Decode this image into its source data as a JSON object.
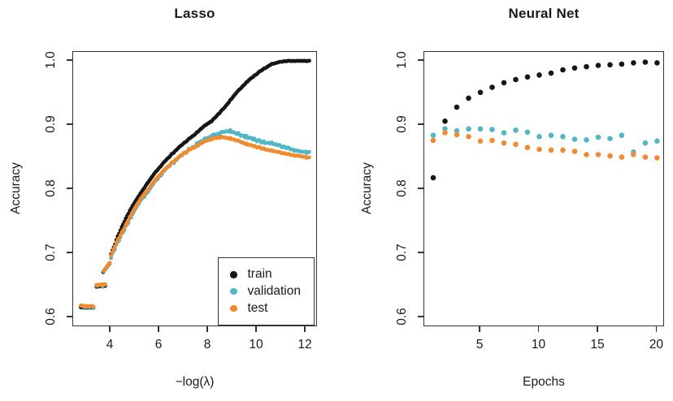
{
  "page": {
    "background": "#ffffff"
  },
  "colors": {
    "train": "#161616",
    "validation": "#52b7c4",
    "test": "#f18b2f",
    "axis": "#333333"
  },
  "chart_data": [
    {
      "type": "scatter",
      "panel": "lasso",
      "title": "Lasso",
      "xlabel": "−log(λ)",
      "ylabel": "Accuracy",
      "xlim": [
        2.467,
        12.5
      ],
      "ylim": [
        0.585,
        1.014
      ],
      "grid": false,
      "xticks": [
        {
          "value": 4,
          "label": "4"
        },
        {
          "value": 6,
          "label": "6"
        },
        {
          "value": 8,
          "label": "8"
        },
        {
          "value": 10,
          "label": "10"
        },
        {
          "value": 12,
          "label": "12"
        }
      ],
      "yticks": [
        {
          "value": 0.6,
          "label": "0.6"
        },
        {
          "value": 0.7,
          "label": "0.7"
        },
        {
          "value": 0.8,
          "label": "0.8"
        },
        {
          "value": 0.9,
          "label": "0.9"
        },
        {
          "value": 1.0,
          "label": "1.0"
        }
      ],
      "legend": {
        "position": "bottom-right",
        "items": [
          {
            "series": "train",
            "label": "train"
          },
          {
            "series": "validation",
            "label": "validation"
          },
          {
            "series": "test",
            "label": "test"
          }
        ]
      },
      "point_radius": 2.4,
      "sample_step_x": 0.055,
      "series": [
        {
          "name": "train",
          "jitter": 0.0006,
          "segments": [
            [
              [
                2.78,
                0.6155
              ],
              [
                3.3,
                0.6155
              ]
            ],
            [
              [
                3.42,
                0.648
              ],
              [
                3.78,
                0.649
              ]
            ],
            [
              [
                3.7,
                0.671
              ],
              [
                3.95,
                0.6835
              ]
            ],
            [
              [
                4.02,
                0.699
              ],
              [
                4.16,
                0.712
              ],
              [
                4.3,
                0.727
              ],
              [
                4.5,
                0.744
              ],
              [
                4.7,
                0.76
              ],
              [
                4.9,
                0.774
              ],
              [
                5.17,
                0.79
              ],
              [
                5.5,
                0.809
              ],
              [
                5.83,
                0.826
              ],
              [
                6.17,
                0.841
              ],
              [
                6.5,
                0.854
              ],
              [
                6.83,
                0.866
              ],
              [
                7.17,
                0.877
              ],
              [
                7.5,
                0.887
              ],
              [
                7.83,
                0.898
              ],
              [
                8.17,
                0.907
              ],
              [
                8.67,
                0.927
              ],
              [
                9.17,
                0.951
              ],
              [
                9.67,
                0.97
              ],
              [
                10.17,
                0.985
              ],
              [
                10.6,
                0.995
              ],
              [
                11.0,
                0.999
              ],
              [
                11.3,
                1.0
              ],
              [
                12.15,
                1.0
              ]
            ]
          ]
        },
        {
          "name": "validation",
          "jitter": 0.002,
          "segments": [
            [
              [
                2.78,
                0.617
              ],
              [
                3.3,
                0.617
              ]
            ],
            [
              [
                3.42,
                0.6495
              ],
              [
                3.78,
                0.6505
              ]
            ],
            [
              [
                3.72,
                0.672
              ],
              [
                3.95,
                0.6845
              ]
            ],
            [
              [
                4.02,
                0.694
              ],
              [
                4.2,
                0.71
              ],
              [
                4.4,
                0.725
              ],
              [
                4.6,
                0.739
              ],
              [
                4.8,
                0.754
              ],
              [
                5.0,
                0.768
              ],
              [
                5.25,
                0.783
              ],
              [
                5.5,
                0.795
              ],
              [
                5.8,
                0.811
              ],
              [
                6.1,
                0.824
              ],
              [
                6.4,
                0.836
              ],
              [
                6.7,
                0.846
              ],
              [
                7.0,
                0.856
              ],
              [
                7.3,
                0.864
              ],
              [
                7.6,
                0.872
              ],
              [
                7.9,
                0.878
              ],
              [
                8.2,
                0.884
              ],
              [
                8.5,
                0.887
              ],
              [
                8.8,
                0.891
              ],
              [
                9.05,
                0.889
              ],
              [
                9.3,
                0.885
              ],
              [
                9.7,
                0.88
              ],
              [
                10.2,
                0.874
              ],
              [
                10.7,
                0.871
              ],
              [
                11.2,
                0.865
              ],
              [
                11.7,
                0.859
              ],
              [
                12.15,
                0.857
              ]
            ]
          ]
        },
        {
          "name": "test",
          "jitter": 0.001,
          "segments": [
            [
              [
                2.78,
                0.618
              ],
              [
                3.3,
                0.618
              ]
            ],
            [
              [
                3.42,
                0.6505
              ],
              [
                3.78,
                0.6515
              ]
            ],
            [
              [
                3.74,
                0.6735
              ],
              [
                3.97,
                0.686
              ]
            ],
            [
              [
                4.02,
                0.697
              ],
              [
                4.2,
                0.713
              ],
              [
                4.4,
                0.728
              ],
              [
                4.6,
                0.742
              ],
              [
                4.8,
                0.757
              ],
              [
                5.0,
                0.771
              ],
              [
                5.25,
                0.786
              ],
              [
                5.5,
                0.798
              ],
              [
                5.8,
                0.813
              ],
              [
                6.1,
                0.826
              ],
              [
                6.4,
                0.837
              ],
              [
                6.7,
                0.847
              ],
              [
                7.0,
                0.856
              ],
              [
                7.3,
                0.863
              ],
              [
                7.6,
                0.869
              ],
              [
                7.9,
                0.875
              ],
              [
                8.2,
                0.879
              ],
              [
                8.5,
                0.881
              ],
              [
                8.8,
                0.88
              ],
              [
                9.2,
                0.876
              ],
              [
                9.6,
                0.87
              ],
              [
                10.0,
                0.866
              ],
              [
                10.5,
                0.861
              ],
              [
                11.0,
                0.857
              ],
              [
                11.5,
                0.853
              ],
              [
                12.15,
                0.849
              ]
            ]
          ]
        }
      ]
    },
    {
      "type": "scatter",
      "panel": "neural-net",
      "title": "Neural Net",
      "xlabel": "Epochs",
      "ylabel": "Accuracy",
      "xlim": [
        0.24,
        20.66
      ],
      "ylim": [
        0.585,
        1.014
      ],
      "grid": false,
      "xticks": [
        {
          "value": 5,
          "label": "5"
        },
        {
          "value": 10,
          "label": "10"
        },
        {
          "value": 15,
          "label": "15"
        },
        {
          "value": 20,
          "label": "20"
        }
      ],
      "yticks": [
        {
          "value": 0.6,
          "label": "0.6"
        },
        {
          "value": 0.7,
          "label": "0.7"
        },
        {
          "value": 0.8,
          "label": "0.8"
        },
        {
          "value": 0.9,
          "label": "0.9"
        },
        {
          "value": 1.0,
          "label": "1.0"
        }
      ],
      "point_radius": 3.3,
      "series": [
        {
          "name": "train",
          "x": [
            1,
            2,
            3,
            4,
            5,
            6,
            7,
            8,
            9,
            10,
            11,
            12,
            13,
            14,
            15,
            16,
            17,
            18,
            19,
            20
          ],
          "y": [
            0.818,
            0.906,
            0.928,
            0.942,
            0.951,
            0.959,
            0.966,
            0.971,
            0.975,
            0.978,
            0.981,
            0.986,
            0.989,
            0.991,
            0.993,
            0.994,
            0.995,
            0.997,
            0.998,
            0.997
          ]
        },
        {
          "name": "validation",
          "x": [
            1,
            2,
            3,
            4,
            5,
            6,
            7,
            8,
            9,
            10,
            11,
            12,
            13,
            14,
            15,
            16,
            17,
            18,
            19,
            20
          ],
          "y": [
            0.884,
            0.894,
            0.891,
            0.894,
            0.894,
            0.893,
            0.888,
            0.892,
            0.889,
            0.882,
            0.884,
            0.882,
            0.878,
            0.877,
            0.881,
            0.879,
            0.884,
            0.858,
            0.872,
            0.875
          ]
        },
        {
          "name": "test",
          "x": [
            1,
            2,
            3,
            4,
            5,
            6,
            7,
            8,
            9,
            10,
            11,
            12,
            13,
            14,
            15,
            16,
            17,
            18,
            19,
            20
          ],
          "y": [
            0.876,
            0.888,
            0.885,
            0.882,
            0.875,
            0.876,
            0.872,
            0.87,
            0.865,
            0.862,
            0.861,
            0.861,
            0.859,
            0.854,
            0.854,
            0.852,
            0.85,
            0.854,
            0.85,
            0.849
          ]
        }
      ]
    }
  ]
}
